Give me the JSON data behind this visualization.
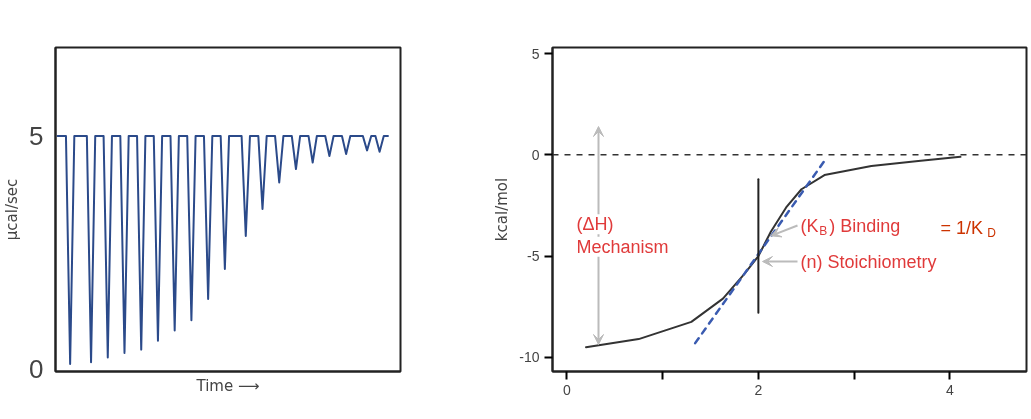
{
  "chart_data": [
    {
      "type": "line",
      "xlabel": "Time ⟶",
      "ylabel": "μcal/sec",
      "ylim": [
        -0.06,
        6.9
      ],
      "yticks": [
        0,
        5
      ],
      "tick_labels": "y",
      "grid": false,
      "marker": "none",
      "line_style": "solid",
      "categories": [
        null,
        null,
        null,
        null,
        null,
        null,
        null,
        null,
        null,
        null,
        null,
        null,
        null,
        null,
        null,
        null,
        null,
        null,
        null,
        null,
        null,
        null,
        null,
        null,
        null,
        null,
        null,
        null,
        null,
        null,
        null,
        null,
        null,
        null,
        null,
        null,
        null,
        null,
        null,
        null,
        null,
        null,
        null,
        null,
        null,
        null,
        null,
        null,
        null,
        null,
        null,
        null,
        null,
        null,
        null,
        null,
        null,
        null,
        null,
        null,
        null,
        null,
        null,
        null,
        null,
        null,
        null,
        null,
        null,
        null,
        null,
        null,
        null,
        null,
        null,
        null,
        null,
        null,
        null,
        null
      ],
      "series": [
        {
          "color": "#2b4a8a",
          "values": [
            5,
            5,
            5,
            0.1,
            5,
            5,
            5,
            5,
            0.14,
            5,
            5,
            5,
            0.24,
            5,
            5,
            5,
            0.34,
            5,
            5,
            5,
            0.41,
            5,
            5,
            5,
            0.6,
            5,
            5,
            5,
            0.82,
            5,
            5,
            5,
            1.04,
            5,
            5,
            5,
            1.5,
            5,
            5,
            5,
            2.14,
            5,
            5,
            5,
            5,
            2.85,
            5,
            5,
            5,
            3.43,
            5,
            5,
            5,
            4.0,
            5,
            5,
            5,
            4.29,
            5,
            5,
            5,
            4.43,
            5,
            5,
            5,
            4.57,
            5,
            5,
            5,
            4.61,
            5,
            5,
            5,
            5,
            4.69,
            5,
            5,
            4.66,
            5,
            5
          ]
        }
      ]
    },
    {
      "type": "line",
      "ylabel": "kcal/mol",
      "xlim": [
        -0.15,
        4.8
      ],
      "ylim": [
        -10.7,
        5.3
      ],
      "xticks": [
        {
          "value": 0,
          "label": "0"
        },
        {
          "value": 1,
          "label": null
        },
        2,
        {
          "value": 3,
          "label": null
        },
        4
      ],
      "yticks": [
        -10,
        -5,
        {
          "value": 0,
          "label": "0"
        },
        5
      ],
      "grid": false,
      "marker": "none",
      "series": [
        {
          "color": "#333333",
          "line_style": "solid",
          "x": [
            0.2,
            0.75,
            1.3,
            1.63,
            1.85,
            2.0,
            2.13,
            2.29,
            2.45,
            2.69,
            3.18,
            3.67,
            4.11
          ],
          "values": [
            -9.5,
            -9.1,
            -8.25,
            -7.1,
            -5.9,
            -5.0,
            -3.8,
            -2.6,
            -1.7,
            -1.0,
            -0.55,
            -0.3,
            -0.1
          ]
        },
        {
          "color": "#3a5bb0",
          "line_style": "dashed",
          "x": [
            1.34,
            2.69
          ],
          "values": [
            -9.3,
            -0.3
          ]
        },
        {
          "color": "#222222",
          "line_style": "solid",
          "x": [
            2,
            2
          ],
          "values": [
            -7.8,
            -1.2
          ]
        }
      ],
      "ref_lines": [
        {
          "axis": "y",
          "value": 0,
          "color": "#333333",
          "line_style": "dashed"
        }
      ],
      "annotations": [
        "(ΔH)\nMechanism",
        {
          "text": "(K$_{B}$) Binding",
          "x": 2.13,
          "y": -4.0
        },
        "= 1/K$_{D}$",
        "(n) Stoichiometry"
      ]
    }
  ]
}
